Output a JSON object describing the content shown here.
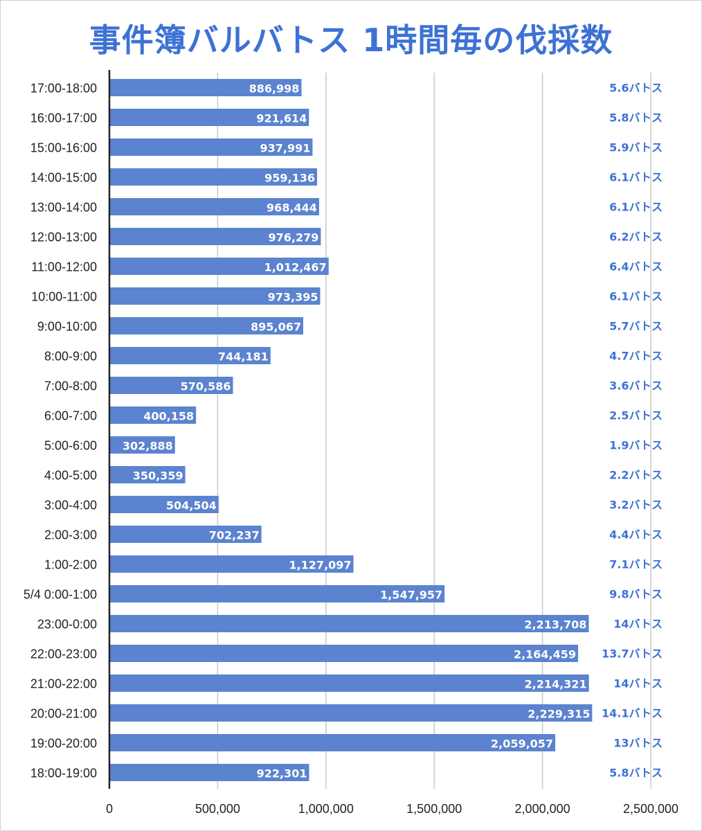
{
  "chart_data": {
    "type": "bar",
    "orientation": "horizontal",
    "title": "事件簿バルバトス 1時間毎の伐採数",
    "xlim": [
      0,
      2500000
    ],
    "xticks": [
      0,
      500000,
      1000000,
      1500000,
      2000000,
      2500000
    ],
    "xtick_labels": [
      "0",
      "500,000",
      "1,000,000",
      "1,500,000",
      "2,000,000",
      "2,500,000"
    ],
    "grid": true,
    "bar_color": "#5b83cf",
    "note_color": "#3d72d4",
    "categories": [
      "17:00-18:00",
      "16:00-17:00",
      "15:00-16:00",
      "14:00-15:00",
      "13:00-14:00",
      "12:00-13:00",
      "11:00-12:00",
      "10:00-11:00",
      "9:00-10:00",
      "8:00-9:00",
      "7:00-8:00",
      "6:00-7:00",
      "5:00-6:00",
      "4:00-5:00",
      "3:00-4:00",
      "2:00-3:00",
      "1:00-2:00",
      "5/4 0:00-1:00",
      "23:00-0:00",
      "22:00-23:00",
      "21:00-22:00",
      "20:00-21:00",
      "19:00-20:00",
      "18:00-19:00"
    ],
    "values": [
      886998,
      921614,
      937991,
      959136,
      968444,
      976279,
      1012467,
      973395,
      895067,
      744181,
      570586,
      400158,
      302888,
      350359,
      504504,
      702237,
      1127097,
      1547957,
      2213708,
      2164459,
      2214321,
      2229315,
      2059057,
      922301
    ],
    "value_labels": [
      "886,998",
      "921,614",
      "937,991",
      "959,136",
      "968,444",
      "976,279",
      "1,012,467",
      "973,395",
      "895,067",
      "744,181",
      "570,586",
      "400,158",
      "302,888",
      "350,359",
      "504,504",
      "702,237",
      "1,127,097",
      "1,547,957",
      "2,213,708",
      "2,164,459",
      "2,214,321",
      "2,229,315",
      "2,059,057",
      "922,301"
    ],
    "annotations": [
      "5.6バトス",
      "5.8バトス",
      "5.9バトス",
      "6.1バトス",
      "6.1バトス",
      "6.2バトス",
      "6.4バトス",
      "6.1バトス",
      "5.7バトス",
      "4.7バトス",
      "3.6バトス",
      "2.5バトス",
      "1.9バトス",
      "2.2バトス",
      "3.2バトス",
      "4.4バトス",
      "7.1バトス",
      "9.8バトス",
      "14バトス",
      "13.7バトス",
      "14バトス",
      "14.1バトス",
      "13バトス",
      "5.8バトス"
    ]
  }
}
